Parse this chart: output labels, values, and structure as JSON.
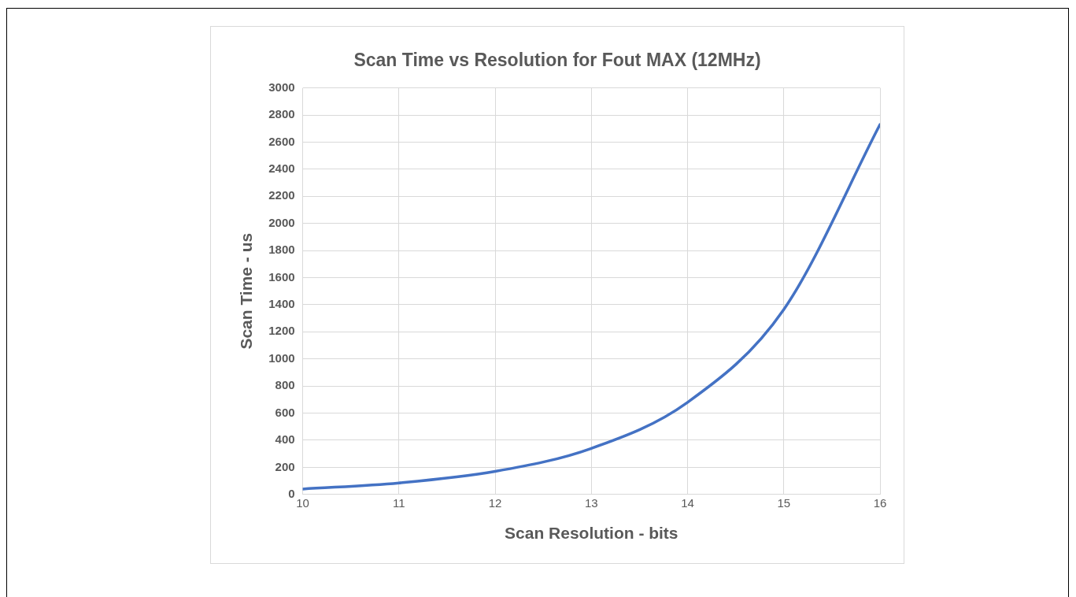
{
  "chart_data": {
    "type": "line",
    "title": "Scan Time vs Resolution for Fout MAX (12MHz)",
    "xlabel": "Scan Resolution - bits",
    "ylabel": "Scan Time - us",
    "x": [
      10,
      11,
      12,
      13,
      14,
      15,
      16
    ],
    "series": [
      {
        "color": "#4472c4",
        "values": [
          40,
          85,
          170,
          340,
          680,
          1365,
          2730
        ]
      }
    ],
    "xlim": [
      10,
      16
    ],
    "xticks": [
      10,
      11,
      12,
      13,
      14,
      15,
      16
    ],
    "ylim": [
      0,
      3000
    ],
    "yticks": [
      0,
      200,
      400,
      600,
      800,
      1000,
      1200,
      1400,
      1600,
      1800,
      2000,
      2200,
      2400,
      2600,
      2800,
      3000
    ],
    "grid": true,
    "legend": false,
    "marker": "none",
    "line_style": "solid"
  }
}
